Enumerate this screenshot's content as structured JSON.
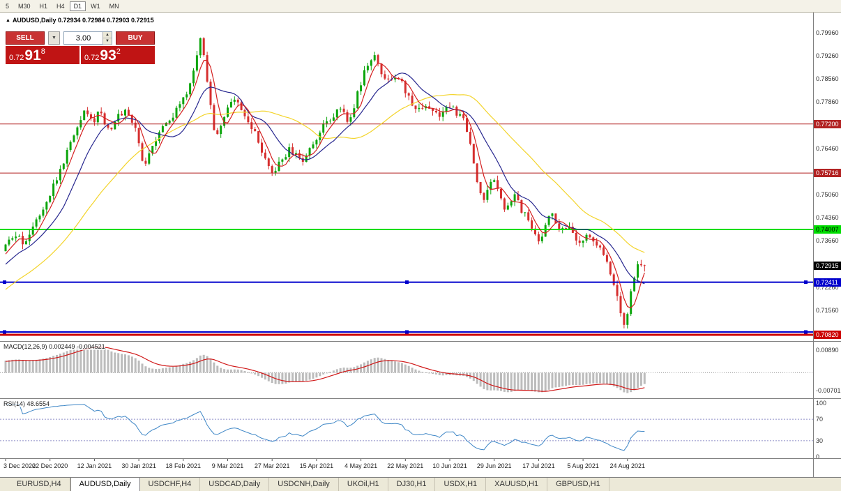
{
  "toolbar": {
    "periods": [
      {
        "label": "5"
      },
      {
        "label": "M30"
      },
      {
        "label": "H1"
      },
      {
        "label": "H4"
      },
      {
        "label": "D1",
        "active": true
      },
      {
        "label": "W1"
      },
      {
        "label": "MN"
      }
    ]
  },
  "chart_header": {
    "text": "AUDUSD,Daily 0.72934 0.72984 0.72903 0.72915"
  },
  "trade_panel": {
    "sell_label": "SELL",
    "buy_label": "BUY",
    "lot_size": "3.00",
    "sell_price": {
      "prefix": "0.72",
      "big": "91",
      "sup": "8"
    },
    "buy_price": {
      "prefix": "0.72",
      "big": "93",
      "sup": "2"
    }
  },
  "indicators": {
    "macd_text": "MACD(12,26,9) 0.002449 -0.004521",
    "rsi_text": "RSI(14) 48.6554"
  },
  "tabs": [
    {
      "label": "EURUSD,H4"
    },
    {
      "label": "AUDUSD,Daily",
      "active": true
    },
    {
      "label": "USDCHF,H4"
    },
    {
      "label": "USDCAD,Daily"
    },
    {
      "label": "USDCNH,Daily"
    },
    {
      "label": "UKOil,H1"
    },
    {
      "label": "DJ30,H1"
    },
    {
      "label": "USDX,H1"
    },
    {
      "label": "XAUUSD,H1"
    },
    {
      "label": "GBPUSD,H1"
    }
  ],
  "chart_data": {
    "type": "candlestick",
    "symbol": "AUDUSD",
    "timeframe": "Daily",
    "ohlc": {
      "open": 0.72934,
      "high": 0.72984,
      "low": 0.72903,
      "close": 0.72915
    },
    "current_price": 0.72915,
    "price_axis_labels": [
      "0.79960",
      "0.79260",
      "0.78560",
      "0.77860",
      "0.76460",
      "0.75060",
      "0.74360",
      "0.73660",
      "0.72260",
      "0.71560"
    ],
    "x_tick_labels": [
      "3 Dec 2020",
      "22 Dec 2020",
      "12 Jan 2021",
      "30 Jan 2021",
      "18 Feb 2021",
      "9 Mar 2021",
      "27 Mar 2021",
      "15 Apr 2021",
      "4 May 2021",
      "22 May 2021",
      "10 Jun 2021",
      "29 Jun 2021",
      "17 Jul 2021",
      "5 Aug 2021",
      "24 Aug 2021"
    ],
    "candle_count": 188,
    "up_color": "#0ca50c",
    "down_color": "#d62e2e",
    "price_range": [
      0.7082,
      0.7996
    ],
    "price_path_keypoints": [
      [
        0,
        0.7335
      ],
      [
        3,
        0.7382
      ],
      [
        6,
        0.736
      ],
      [
        9,
        0.7422
      ],
      [
        13,
        0.75
      ],
      [
        16,
        0.7562
      ],
      [
        19,
        0.7645
      ],
      [
        22,
        0.773
      ],
      [
        24,
        0.7772
      ],
      [
        26,
        0.7718
      ],
      [
        28,
        0.7762
      ],
      [
        31,
        0.77
      ],
      [
        33,
        0.7737
      ],
      [
        36,
        0.7768
      ],
      [
        39,
        0.769
      ],
      [
        41,
        0.7588
      ],
      [
        43,
        0.7648
      ],
      [
        46,
        0.7708
      ],
      [
        49,
        0.7737
      ],
      [
        52,
        0.7778
      ],
      [
        54,
        0.7822
      ],
      [
        56,
        0.789
      ],
      [
        57,
        0.7958
      ],
      [
        58,
        0.7984
      ],
      [
        59,
        0.789
      ],
      [
        60,
        0.782
      ],
      [
        62,
        0.768
      ],
      [
        64,
        0.7735
      ],
      [
        66,
        0.7772
      ],
      [
        68,
        0.779
      ],
      [
        70,
        0.7748
      ],
      [
        73,
        0.7702
      ],
      [
        75,
        0.7652
      ],
      [
        77,
        0.7592
      ],
      [
        79,
        0.756
      ],
      [
        81,
        0.7612
      ],
      [
        84,
        0.7642
      ],
      [
        87,
        0.7602
      ],
      [
        90,
        0.7655
      ],
      [
        93,
        0.7702
      ],
      [
        96,
        0.7747
      ],
      [
        99,
        0.7768
      ],
      [
        101,
        0.7722
      ],
      [
        103,
        0.779
      ],
      [
        105,
        0.7862
      ],
      [
        107,
        0.7902
      ],
      [
        109,
        0.7922
      ],
      [
        111,
        0.7872
      ],
      [
        113,
        0.784
      ],
      [
        115,
        0.7872
      ],
      [
        117,
        0.7832
      ],
      [
        119,
        0.7792
      ],
      [
        121,
        0.7762
      ],
      [
        124,
        0.7782
      ],
      [
        127,
        0.7747
      ],
      [
        130,
        0.7772
      ],
      [
        133,
        0.7752
      ],
      [
        135,
        0.7722
      ],
      [
        137,
        0.7642
      ],
      [
        139,
        0.7522
      ],
      [
        141,
        0.7492
      ],
      [
        143,
        0.7556
      ],
      [
        145,
        0.7512
      ],
      [
        147,
        0.7462
      ],
      [
        149,
        0.7506
      ],
      [
        151,
        0.7472
      ],
      [
        153,
        0.7442
      ],
      [
        155,
        0.7402
      ],
      [
        157,
        0.7362
      ],
      [
        159,
        0.7432
      ],
      [
        161,
        0.7446
      ],
      [
        163,
        0.7392
      ],
      [
        165,
        0.7412
      ],
      [
        167,
        0.7372
      ],
      [
        169,
        0.7346
      ],
      [
        171,
        0.7392
      ],
      [
        173,
        0.7366
      ],
      [
        175,
        0.7332
      ],
      [
        177,
        0.7302
      ],
      [
        179,
        0.7212
      ],
      [
        181,
        0.7132
      ],
      [
        182,
        0.7106
      ],
      [
        183,
        0.7162
      ],
      [
        184,
        0.7232
      ],
      [
        185,
        0.7282
      ],
      [
        186,
        0.7302
      ],
      [
        187,
        0.7292
      ]
    ],
    "levels": [
      {
        "price": 0.772,
        "label": "0.77200",
        "color": "#b22222",
        "width": 1,
        "selected": false
      },
      {
        "price": 0.75716,
        "label": "0.75716",
        "color": "#b22222",
        "width": 1,
        "selected": false
      },
      {
        "price": 0.74007,
        "label": "0.74007",
        "color": "#00dd00",
        "width": 2,
        "selected": false
      },
      {
        "price": 0.72411,
        "label": "0.72411",
        "color": "#0000cc",
        "width": 2,
        "selected": true
      },
      {
        "price": 0.70905,
        "label": "",
        "color": "#0000cc",
        "width": 2,
        "selected": true
      },
      {
        "price": 0.7082,
        "label": "0.70820",
        "color": "#cc0000",
        "width": 3,
        "selected": false
      }
    ],
    "moving_averages": [
      {
        "name": "slow-ma",
        "window": 34,
        "color": "#f3d42b"
      },
      {
        "name": "medium-ma",
        "window": 13,
        "color": "#27278f"
      },
      {
        "name": "fast-ma",
        "window": 5,
        "color": "#d42020"
      }
    ],
    "macd": {
      "axis_labels": [
        0.0089,
        -0.00701
      ],
      "histogram_color": "#bcbcbc",
      "signal_color": "#d01818"
    },
    "rsi": {
      "axis_labels": [
        100,
        70,
        30,
        0
      ],
      "level_lines": [
        70,
        30
      ],
      "line_color": "#3d86c6"
    }
  }
}
